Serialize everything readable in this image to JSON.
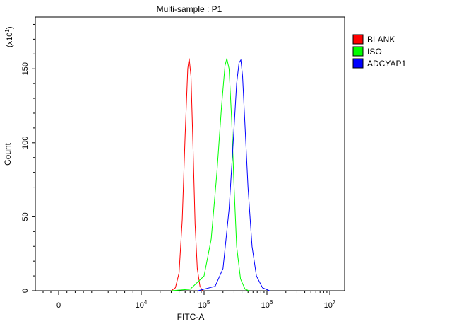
{
  "chart_data": {
    "type": "line",
    "title": "Multi-sample : P1",
    "xlabel": "FITC-A",
    "ylabel": "Count",
    "y_multiplier_label": "(x10",
    "y_multiplier_exp": "1",
    "y_multiplier_close": ")",
    "x_scale": "biexponential",
    "x_ticks": [
      {
        "value": 0,
        "base": "0",
        "exp": ""
      },
      {
        "value": 10000,
        "base": "10",
        "exp": "4"
      },
      {
        "value": 100000,
        "base": "10",
        "exp": "5"
      },
      {
        "value": 1000000,
        "base": "10",
        "exp": "6"
      },
      {
        "value": 10000000,
        "base": "10",
        "exp": "7"
      }
    ],
    "y_ticks": [
      0,
      50,
      100,
      150
    ],
    "ylim": [
      0,
      185
    ],
    "legend_position": "top-right",
    "series": [
      {
        "name": "BLANK",
        "color": "#ff0000",
        "points": [
          [
            30000,
            0
          ],
          [
            35000,
            2
          ],
          [
            40000,
            12
          ],
          [
            45000,
            48
          ],
          [
            50000,
            105
          ],
          [
            55000,
            150
          ],
          [
            58000,
            157
          ],
          [
            62000,
            145
          ],
          [
            67000,
            95
          ],
          [
            72000,
            45
          ],
          [
            78000,
            15
          ],
          [
            86000,
            3
          ],
          [
            95000,
            0
          ]
        ]
      },
      {
        "name": "ISO",
        "color": "#00ff00",
        "points": [
          [
            30000,
            0
          ],
          [
            60000,
            1
          ],
          [
            100000,
            10
          ],
          [
            130000,
            35
          ],
          [
            160000,
            80
          ],
          [
            190000,
            125
          ],
          [
            215000,
            152
          ],
          [
            230000,
            157
          ],
          [
            250000,
            150
          ],
          [
            275000,
            115
          ],
          [
            300000,
            70
          ],
          [
            330000,
            30
          ],
          [
            380000,
            8
          ],
          [
            450000,
            1
          ],
          [
            520000,
            0
          ]
        ]
      },
      {
        "name": "ADCYAP1",
        "color": "#0000ff",
        "points": [
          [
            80000,
            0
          ],
          [
            150000,
            3
          ],
          [
            200000,
            15
          ],
          [
            250000,
            55
          ],
          [
            290000,
            100
          ],
          [
            330000,
            140
          ],
          [
            360000,
            154
          ],
          [
            385000,
            156
          ],
          [
            410000,
            145
          ],
          [
            450000,
            110
          ],
          [
            500000,
            70
          ],
          [
            580000,
            30
          ],
          [
            680000,
            10
          ],
          [
            850000,
            2
          ],
          [
            1100000,
            0
          ]
        ]
      }
    ]
  }
}
